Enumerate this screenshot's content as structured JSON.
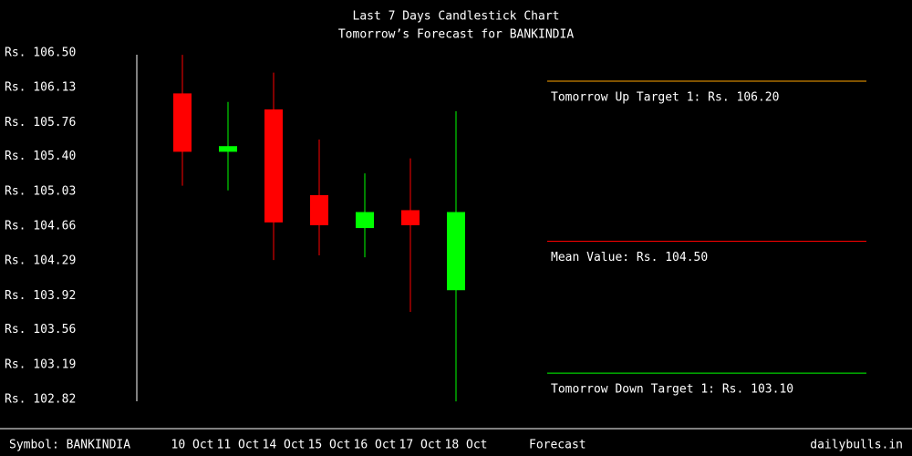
{
  "chart_data": {
    "type": "candlestick",
    "title": "Last 7 Days Candlestick Chart",
    "subtitle": "Tomorrow’s Forecast for BANKINDIA",
    "categories": [
      "10 Oct",
      "11 Oct",
      "14 Oct",
      "15 Oct",
      "16 Oct",
      "17 Oct",
      "18 Oct"
    ],
    "open": [
      106.07,
      105.45,
      105.9,
      104.99,
      104.64,
      104.83,
      103.98
    ],
    "high": [
      106.48,
      105.98,
      106.29,
      105.58,
      105.22,
      105.38,
      105.88
    ],
    "low": [
      105.09,
      105.04,
      104.3,
      104.35,
      104.33,
      103.75,
      102.8
    ],
    "close": [
      105.45,
      105.51,
      104.7,
      104.67,
      104.81,
      104.67,
      104.81
    ],
    "up_color": "#00ff00",
    "down_color": "#ff0000",
    "ylim": [
      102.82,
      106.5
    ],
    "yticks": [
      {
        "value": 106.5,
        "label": "Rs. 106.50"
      },
      {
        "value": 106.13,
        "label": "Rs. 106.13"
      },
      {
        "value": 105.76,
        "label": "Rs. 105.76"
      },
      {
        "value": 105.4,
        "label": "Rs. 105.40"
      },
      {
        "value": 105.03,
        "label": "Rs. 105.03"
      },
      {
        "value": 104.66,
        "label": "Rs. 104.66"
      },
      {
        "value": 104.29,
        "label": "Rs. 104.29"
      },
      {
        "value": 103.92,
        "label": "Rs. 103.92"
      },
      {
        "value": 103.56,
        "label": "Rs. 103.56"
      },
      {
        "value": 103.19,
        "label": "Rs. 103.19"
      },
      {
        "value": 102.82,
        "label": "Rs. 102.82"
      }
    ],
    "forecast": {
      "values": [
        106.2,
        104.5,
        103.1
      ],
      "value_labels": [
        "Tomorrow Up Target 1: Rs. 106.20",
        "Mean Value: Rs. 104.50",
        "Tomorrow Down Target 1: Rs. 103.10"
      ],
      "colors": [
        "#ffa500",
        "#ff0000",
        "#00ff00"
      ]
    },
    "symbol_label": "Symbol: BANKINDIA",
    "forecast_label": "Forecast",
    "source": "dailybulls.in"
  }
}
